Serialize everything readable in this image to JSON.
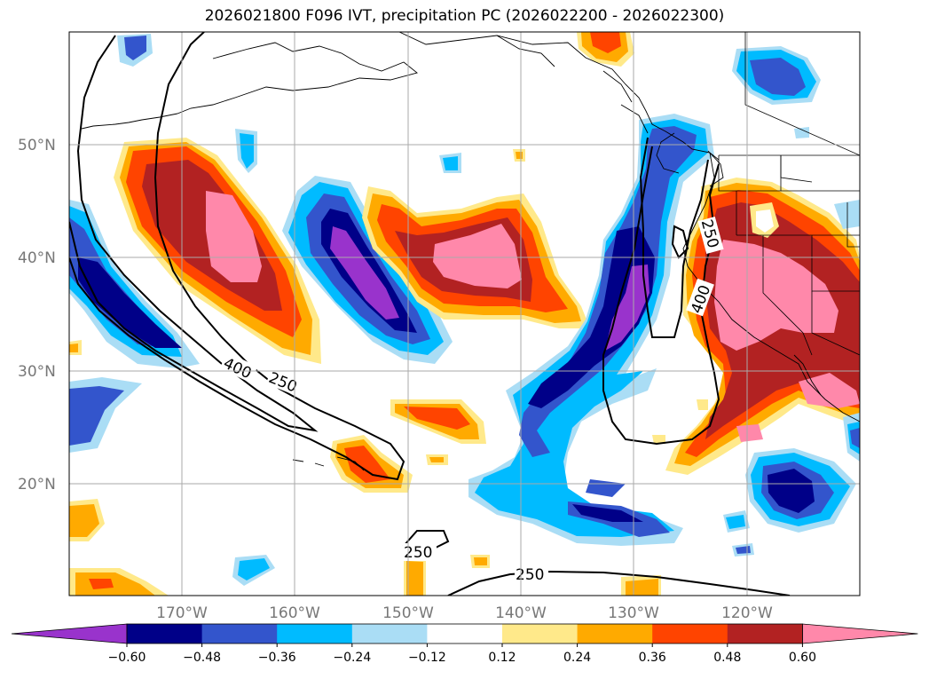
{
  "title": "2026021800 F096 IVT, precipitation PC (2026022200 - 2026022300)",
  "map": {
    "lat_labels": [
      "50°N",
      "40°N",
      "30°N",
      "20°N"
    ],
    "lon_labels": [
      "170°W",
      "160°W",
      "150°W",
      "140°W",
      "130°W",
      "120°W"
    ],
    "contour_labels": [
      "400",
      "250",
      "250",
      "250",
      "400",
      "250"
    ]
  },
  "colorbar": {
    "ticks": [
      "−0.60",
      "−0.48",
      "−0.36",
      "−0.24",
      "−0.12",
      "0.12",
      "0.24",
      "0.36",
      "0.48",
      "0.60"
    ],
    "colors": [
      "#9933cc",
      "#000088",
      "#3355cc",
      "#00bbff",
      "#aaddf5",
      "#ffffff",
      "#ffe98a",
      "#ffaa00",
      "#ff4400",
      "#b22222",
      "#ff88aa"
    ]
  }
}
